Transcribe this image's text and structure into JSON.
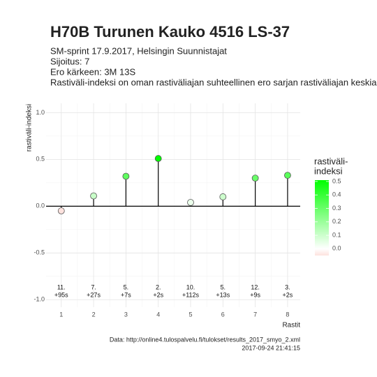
{
  "chart_data": {
    "type": "lollipop",
    "title": "H70B Turunen Kauko 4516 LS-37",
    "subtitle": [
      "SM-sprint 17.9.2017, Helsingin Suunnistajat",
      "Sijoitus: 7",
      "Ero kärkeen: 3M 13S",
      "Rastiväli-indeksi on oman rastiväliajan suhteellinen ero sarjan rastiväliajan keskiar"
    ],
    "caption": [
      "Data: http://online4.tulospalvelu.fi/tulokset/results_2017_smyo_2.xml",
      "2017-09-24 21:41:15"
    ],
    "x_label": "Rastit",
    "y_label": "rastiväli-indeksi",
    "x": [
      1,
      2,
      3,
      4,
      5,
      6,
      7,
      8
    ],
    "values": [
      -0.05,
      0.11,
      0.32,
      0.51,
      0.04,
      0.1,
      0.3,
      0.33
    ],
    "rank_labels": [
      "11.",
      "7.",
      "5.",
      "2.",
      "10.",
      "5.",
      "12.",
      "3."
    ],
    "time_labels": [
      "+95s",
      "+27s",
      "+7s",
      "+2s",
      "+112s",
      "+13s",
      "+9s",
      "+2s"
    ],
    "xlim": [
      0.53,
      8.39
    ],
    "xticks": [
      1,
      2,
      3,
      4,
      5,
      6,
      7,
      8
    ],
    "ylim": [
      -1.08,
      1.1
    ],
    "yticks": [
      {
        "value": -1,
        "label": "-1.0"
      },
      -0.5,
      {
        "value": 0,
        "label": "0.0"
      },
      0.5,
      {
        "value": 1,
        "label": "1.0"
      }
    ],
    "grid": true,
    "color_scale": {
      "low": "#fde2de",
      "mid": "#ffffff",
      "high": "#00ff00",
      "midpoint": 0
    },
    "legend_title": [
      "rastiväli-",
      "indeksi"
    ],
    "legend_ticks": [
      {
        "value": 0,
        "label": "0.0"
      },
      0.1,
      0.2,
      0.3,
      0.4,
      0.5
    ]
  }
}
